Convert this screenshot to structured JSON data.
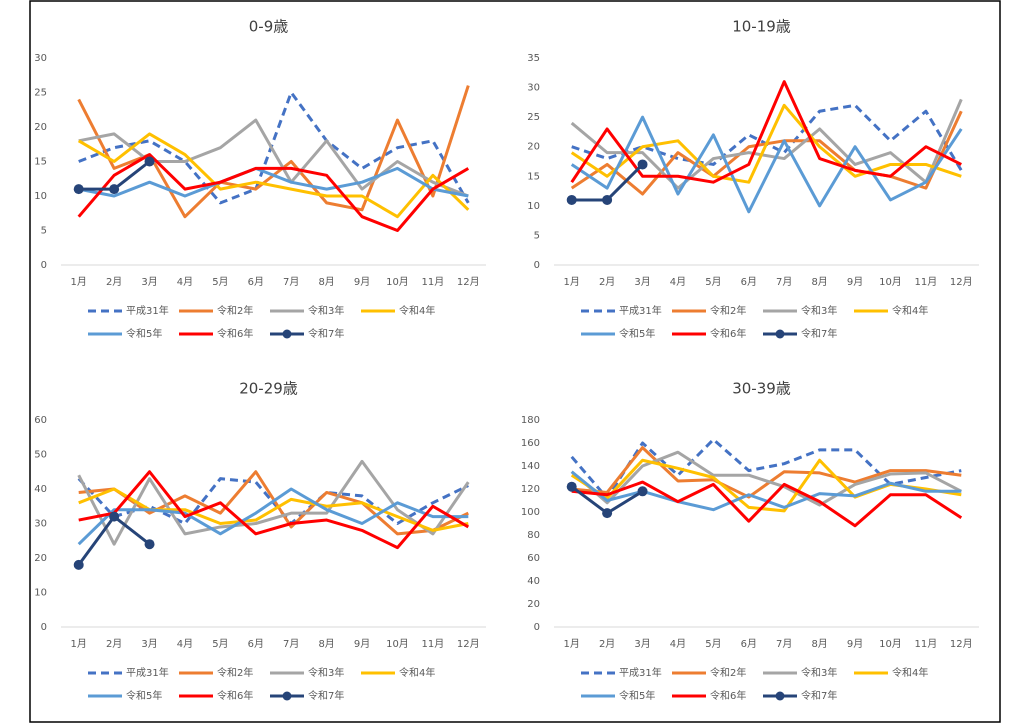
{
  "chart_data": [
    {
      "type": "line",
      "title": "0-9歳",
      "categories": [
        "1月",
        "2月",
        "3月",
        "4月",
        "5月",
        "6月",
        "7月",
        "8月",
        "9月",
        "10月",
        "11月",
        "12月"
      ],
      "ylim": [
        0,
        30
      ],
      "yticks": [
        0,
        5,
        10,
        15,
        20,
        25,
        30
      ],
      "grid": false,
      "series": [
        {
          "name": "平成31年",
          "color": "#4472c4",
          "dashed": true,
          "values": [
            15,
            17,
            18,
            15,
            9,
            11,
            25,
            18,
            14,
            17,
            18,
            9
          ]
        },
        {
          "name": "令和2年",
          "color": "#ed7d31",
          "values": [
            24,
            14,
            16,
            7,
            12,
            11,
            15,
            9,
            8,
            21,
            10,
            26
          ]
        },
        {
          "name": "令和3年",
          "color": "#a5a5a5",
          "values": [
            18,
            19,
            15,
            15,
            17,
            21,
            12,
            18,
            11,
            15,
            12,
            10
          ]
        },
        {
          "name": "令和4年",
          "color": "#ffc000",
          "values": [
            18,
            15,
            19,
            16,
            11,
            12,
            11,
            10,
            10,
            7,
            13,
            8
          ]
        },
        {
          "name": "令和5年",
          "color": "#5b9bd5",
          "values": [
            11,
            10,
            12,
            10,
            12,
            14,
            12,
            11,
            12,
            14,
            11,
            10
          ]
        },
        {
          "name": "令和6年",
          "color": "#ff0000",
          "values": [
            7,
            13,
            16,
            11,
            12,
            14,
            14,
            13,
            7,
            5,
            11,
            14
          ]
        },
        {
          "name": "令和7年",
          "color": "#264478",
          "markers": true,
          "values": [
            11,
            11,
            15,
            null,
            null,
            null,
            null,
            null,
            null,
            null,
            null,
            null
          ]
        }
      ]
    },
    {
      "type": "line",
      "title": "10-19歳",
      "categories": [
        "1月",
        "2月",
        "3月",
        "4月",
        "5月",
        "6月",
        "7月",
        "8月",
        "9月",
        "10月",
        "11月",
        "12月"
      ],
      "ylim": [
        0,
        35
      ],
      "yticks": [
        0,
        5,
        10,
        15,
        20,
        25,
        30,
        35
      ],
      "grid": false,
      "series": [
        {
          "name": "平成31年",
          "color": "#4472c4",
          "dashed": true,
          "values": [
            20,
            18,
            20,
            18,
            17,
            22,
            19,
            26,
            27,
            21,
            26,
            16
          ]
        },
        {
          "name": "令和2年",
          "color": "#ed7d31",
          "values": [
            13,
            17,
            12,
            19,
            15,
            20,
            21,
            21,
            16,
            15,
            13,
            26
          ]
        },
        {
          "name": "令和3年",
          "color": "#a5a5a5",
          "values": [
            24,
            19,
            19,
            13,
            18,
            19,
            18,
            23,
            17,
            19,
            14,
            28
          ]
        },
        {
          "name": "令和4年",
          "color": "#ffc000",
          "values": [
            19,
            15,
            20,
            21,
            15,
            14,
            27,
            20,
            15,
            17,
            17,
            15
          ]
        },
        {
          "name": "令和5年",
          "color": "#5b9bd5",
          "values": [
            17,
            13,
            25,
            12,
            22,
            9,
            21,
            10,
            20,
            11,
            14,
            23
          ]
        },
        {
          "name": "令和6年",
          "color": "#ff0000",
          "values": [
            14,
            23,
            15,
            15,
            14,
            17,
            31,
            18,
            16,
            15,
            20,
            17
          ]
        },
        {
          "name": "令和7年",
          "color": "#264478",
          "markers": true,
          "values": [
            11,
            11,
            17,
            null,
            null,
            null,
            null,
            null,
            null,
            null,
            null,
            null
          ]
        }
      ]
    },
    {
      "type": "line",
      "title": "20-29歳",
      "categories": [
        "1月",
        "2月",
        "3月",
        "4月",
        "5月",
        "6月",
        "7月",
        "8月",
        "9月",
        "10月",
        "11月",
        "12月"
      ],
      "ylim": [
        0,
        60
      ],
      "yticks": [
        0,
        10,
        20,
        30,
        40,
        50,
        60
      ],
      "grid": false,
      "series": [
        {
          "name": "平成31年",
          "color": "#4472c4",
          "dashed": true,
          "values": [
            43,
            32,
            35,
            30,
            43,
            42,
            30,
            39,
            38,
            30,
            36,
            41
          ]
        },
        {
          "name": "令和2年",
          "color": "#ed7d31",
          "values": [
            39,
            40,
            33,
            38,
            33,
            45,
            29,
            39,
            36,
            27,
            28,
            33
          ]
        },
        {
          "name": "令和3年",
          "color": "#a5a5a5",
          "values": [
            44,
            24,
            43,
            27,
            29,
            30,
            33,
            33,
            48,
            34,
            27,
            42
          ]
        },
        {
          "name": "令和4年",
          "color": "#ffc000",
          "values": [
            36,
            40,
            34,
            34,
            30,
            31,
            37,
            35,
            36,
            32,
            28,
            30
          ]
        },
        {
          "name": "令和5年",
          "color": "#5b9bd5",
          "values": [
            24,
            34,
            34,
            33,
            27,
            33,
            40,
            34,
            30,
            36,
            32,
            32
          ]
        },
        {
          "name": "令和6年",
          "color": "#ff0000",
          "values": [
            31,
            33,
            45,
            32,
            36,
            27,
            30,
            31,
            28,
            23,
            35,
            29
          ]
        },
        {
          "name": "令和7年",
          "color": "#264478",
          "markers": true,
          "values": [
            18,
            32,
            24,
            null,
            null,
            null,
            null,
            null,
            null,
            null,
            null,
            null
          ]
        }
      ]
    },
    {
      "type": "line",
      "title": "30-39歳",
      "categories": [
        "1月",
        "2月",
        "3月",
        "4月",
        "5月",
        "6月",
        "7月",
        "8月",
        "9月",
        "10月",
        "11月",
        "12月"
      ],
      "ylim": [
        0,
        180
      ],
      "yticks": [
        0,
        20,
        40,
        60,
        80,
        100,
        120,
        140,
        160,
        180
      ],
      "grid": false,
      "series": [
        {
          "name": "平成31年",
          "color": "#4472c4",
          "dashed": true,
          "values": [
            148,
            112,
            160,
            132,
            163,
            136,
            142,
            154,
            154,
            124,
            130,
            136
          ]
        },
        {
          "name": "令和2年",
          "color": "#ed7d31",
          "values": [
            120,
            117,
            156,
            127,
            128,
            113,
            135,
            134,
            126,
            136,
            136,
            132
          ]
        },
        {
          "name": "令和3年",
          "color": "#a5a5a5",
          "values": [
            135,
            108,
            140,
            152,
            132,
            132,
            122,
            106,
            124,
            133,
            134,
            118
          ]
        },
        {
          "name": "令和4年",
          "color": "#ffc000",
          "values": [
            132,
            112,
            145,
            138,
            130,
            104,
            101,
            145,
            113,
            124,
            120,
            115
          ]
        },
        {
          "name": "令和5年",
          "color": "#5b9bd5",
          "values": [
            135,
            110,
            118,
            109,
            102,
            115,
            104,
            116,
            114,
            125,
            118,
            118
          ]
        },
        {
          "name": "令和6年",
          "color": "#ff0000",
          "values": [
            118,
            115,
            126,
            109,
            124,
            92,
            124,
            109,
            88,
            115,
            115,
            95
          ]
        },
        {
          "name": "令和7年",
          "color": "#264478",
          "markers": true,
          "values": [
            122,
            99,
            118,
            null,
            null,
            null,
            null,
            null,
            null,
            null,
            null,
            null
          ]
        }
      ]
    }
  ]
}
